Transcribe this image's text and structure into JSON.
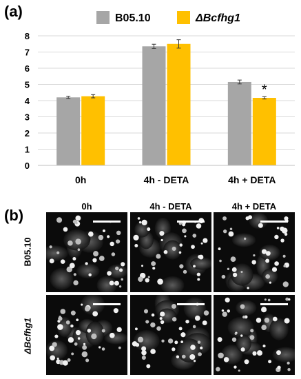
{
  "panels": {
    "a": "(a)",
    "b": "(b)"
  },
  "chart_data": {
    "type": "bar",
    "categories": [
      "0h",
      "4h - DETA",
      "4h + DETA"
    ],
    "series": [
      {
        "name": "B05.10",
        "color": "#a6a6a6",
        "values": [
          4.2,
          7.35,
          5.15
        ],
        "errors": [
          0.07,
          0.13,
          0.12
        ]
      },
      {
        "name": "ΔBcfhg1",
        "color": "#ffc000",
        "values": [
          4.27,
          7.5,
          4.17
        ],
        "errors": [
          0.1,
          0.26,
          0.07
        ]
      }
    ],
    "yticks": [
      "0",
      "1",
      "2",
      "3",
      "4",
      "5",
      "6",
      "7",
      "8"
    ],
    "ylim": [
      0,
      8
    ],
    "grid": true,
    "legend_position": "top",
    "annotations": [
      {
        "text": "*",
        "category": "4h + DETA",
        "series": "ΔBcfhg1"
      }
    ]
  },
  "micrographs": {
    "columns": [
      "0h",
      "4h - DETA",
      "4h + DETA"
    ],
    "rows": [
      "B05.10",
      "ΔBcfhg1"
    ]
  }
}
